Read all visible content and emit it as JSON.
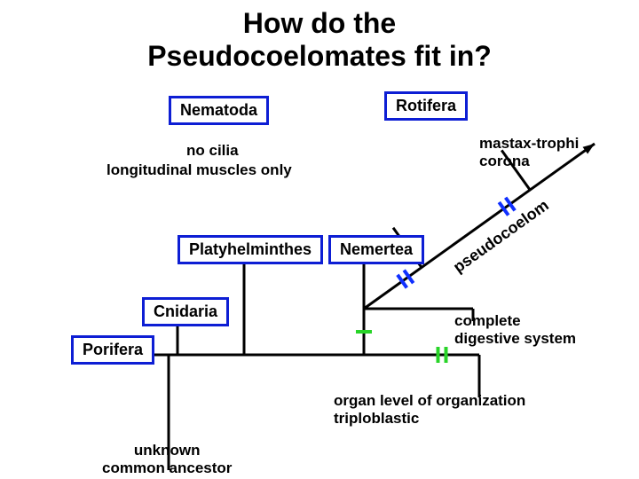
{
  "title": {
    "line1": "How do the",
    "line2": "Pseudocoelomates fit in?"
  },
  "taxa": {
    "nematoda": "Nematoda",
    "rotifera": "Rotifera",
    "platyhelminthes": "Platyhelminthes",
    "nemertea": "Nemertea",
    "cnidaria": "Cnidaria",
    "porifera": "Porifera"
  },
  "traits": {
    "no_cilia": "no cilia",
    "longitudinal": "longitudinal muscles only",
    "mastax": "mastax-trophi",
    "corona": "corona",
    "complete_digestive": "complete\ndigestive system",
    "organ_level": "organ level of organization\ntriploblastic",
    "pseudocoelom": "pseudocoelom",
    "unknown_ancestor": "unknown\ncommon ancestor"
  },
  "colors": {
    "box_border": "#0d1ed4",
    "line": "#000000",
    "tick_blue": "#1030ff",
    "tick_green": "#28d428",
    "background": "#ffffff"
  },
  "diagram": {
    "type": "tree",
    "line_width": 3,
    "tick_width": 4,
    "branches": [
      {
        "from": [
          190,
          530
        ],
        "to": [
          190,
          400
        ],
        "desc": "root vertical"
      },
      {
        "from": [
          190,
          400
        ],
        "to": [
          120,
          400
        ],
        "desc": "to porifera h"
      },
      {
        "from": [
          120,
          400
        ],
        "to": [
          120,
          380
        ],
        "desc": "porifera stub"
      },
      {
        "from": [
          190,
          400
        ],
        "to": [
          540,
          400
        ],
        "desc": "main h at 400"
      },
      {
        "from": [
          540,
          400
        ],
        "to": [
          540,
          448
        ],
        "desc": "organ stub down"
      },
      {
        "from": [
          200,
          400
        ],
        "to": [
          200,
          362
        ],
        "desc": "cnidaria v"
      },
      {
        "from": [
          275,
          400
        ],
        "to": [
          275,
          292
        ],
        "desc": "platy v"
      },
      {
        "from": [
          410,
          400
        ],
        "to": [
          410,
          292
        ],
        "desc": "nemertea v"
      },
      {
        "from": [
          410,
          348
        ],
        "to": [
          533,
          348
        ],
        "desc": "complete dig h"
      },
      {
        "from": [
          533,
          348
        ],
        "to": [
          533,
          362
        ],
        "desc": "complete dig stub"
      }
    ],
    "diag_branch": {
      "from": [
        410,
        348
      ],
      "to": [
        670,
        162
      ],
      "desc": "pseudocoelom diag"
    },
    "diag_offshoots": [
      {
        "t": 0.25,
        "len": 55,
        "target": "nematoda"
      },
      {
        "t": 0.72,
        "len": 55,
        "target": "rotifera"
      }
    ],
    "ticks": [
      {
        "on": "diag",
        "t": 0.18,
        "count": 2,
        "color": "#1030ff",
        "desc": "no cilia + longitudinal"
      },
      {
        "on": "diag",
        "t": 0.62,
        "count": 2,
        "color": "#1030ff",
        "desc": "mastax + corona"
      },
      {
        "on": "seg",
        "p1": [
          410,
          400
        ],
        "p2": [
          410,
          348
        ],
        "frac": 0.5,
        "count": 1,
        "color": "#28d428",
        "desc": "complete digestive"
      },
      {
        "on": "seg",
        "p1": [
          190,
          400
        ],
        "p2": [
          540,
          400
        ],
        "frac": 0.88,
        "count": 2,
        "color": "#28d428",
        "desc": "organ+triplo"
      }
    ]
  }
}
